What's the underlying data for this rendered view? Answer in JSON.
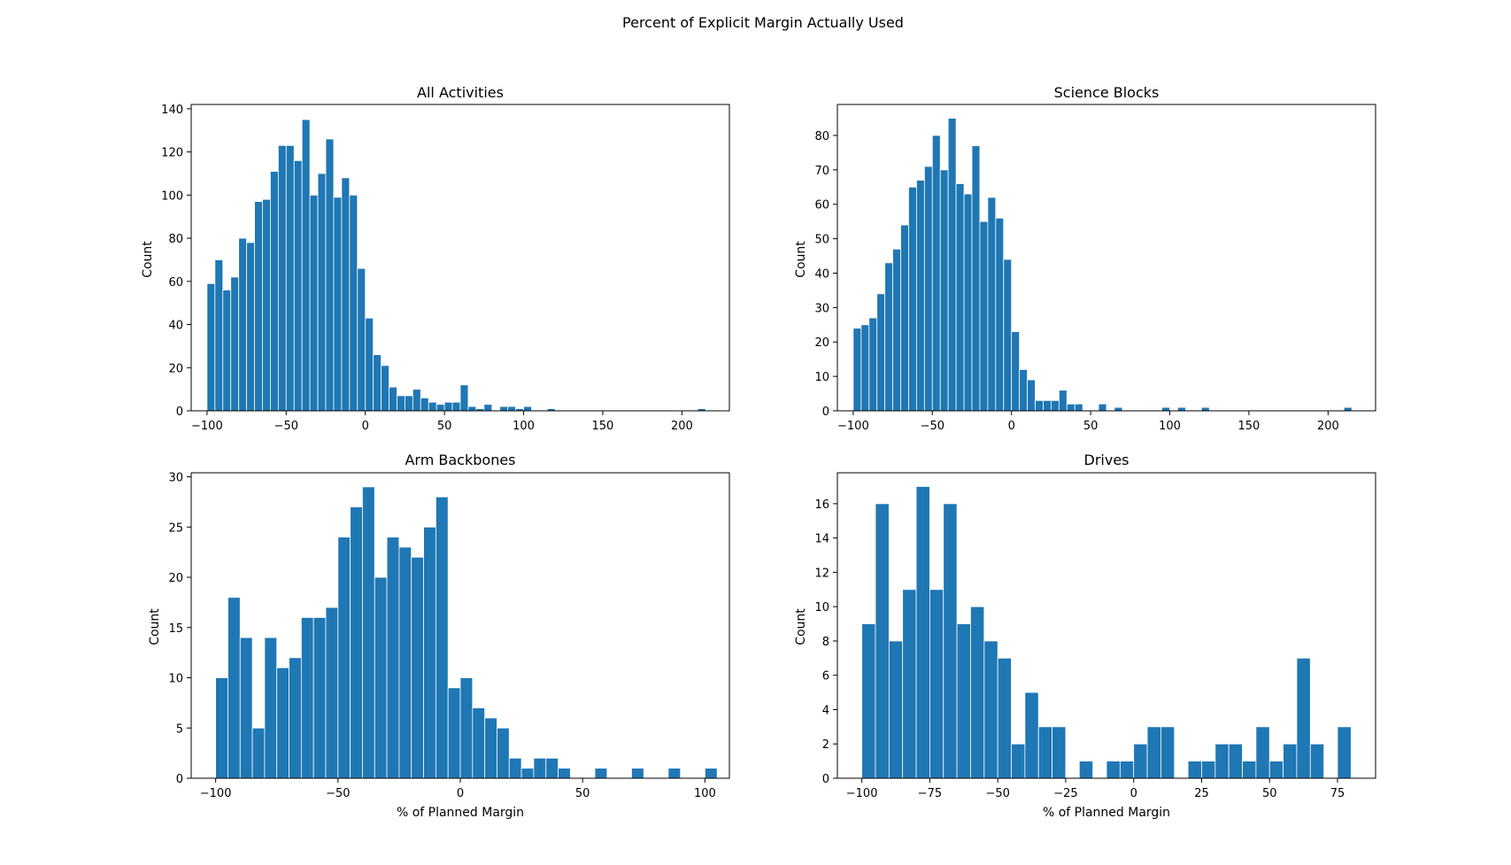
{
  "figure": {
    "suptitle": "Percent of Explicit Margin Actually Used",
    "bar_color": "#1f77b4"
  },
  "chart_data": [
    {
      "type": "bar",
      "title": "All Activities",
      "xlabel": "",
      "ylabel": "Count",
      "xlim": [
        -110,
        230
      ],
      "ylim": [
        0,
        142
      ],
      "xticks": [
        -100,
        -50,
        0,
        50,
        100,
        150,
        200
      ],
      "xtick_labels": [
        "−100",
        "−50",
        "0",
        "50",
        "100",
        "150",
        "200"
      ],
      "yticks": [
        0,
        20,
        40,
        60,
        80,
        100,
        120,
        140
      ],
      "bin_edges": [
        -100,
        -95,
        -90,
        -85,
        -80,
        -75,
        -70,
        -65,
        -60,
        -55,
        -50,
        -45,
        -40,
        -35,
        -30,
        -25,
        -20,
        -15,
        -10,
        -5,
        0,
        5,
        10,
        15,
        20,
        25,
        30,
        35,
        40,
        45,
        50,
        55,
        60,
        65,
        70,
        75,
        80,
        85,
        90,
        95,
        100,
        105,
        110,
        115,
        120,
        125,
        130,
        135,
        140,
        145,
        150,
        155,
        160,
        165,
        170,
        175,
        180,
        185,
        190,
        195,
        200,
        205,
        210,
        215
      ],
      "values": [
        59,
        70,
        56,
        62,
        80,
        78,
        97,
        98,
        111,
        123,
        123,
        116,
        135,
        100,
        110,
        126,
        99,
        108,
        100,
        66,
        43,
        26,
        21,
        11,
        7,
        7,
        10,
        6,
        4,
        3,
        4,
        4,
        12,
        2,
        1,
        3,
        0,
        2,
        2,
        1,
        2,
        0,
        0,
        1,
        0,
        0,
        0,
        0,
        0,
        0,
        0,
        0,
        0,
        0,
        0,
        0,
        0,
        0,
        0,
        0,
        0,
        0,
        1
      ]
    },
    {
      "type": "bar",
      "title": "Science Blocks",
      "xlabel": "",
      "ylabel": "Count",
      "xlim": [
        -110,
        230
      ],
      "ylim": [
        0,
        89
      ],
      "xticks": [
        -100,
        -50,
        0,
        50,
        100,
        150,
        200
      ],
      "xtick_labels": [
        "−100",
        "−50",
        "0",
        "50",
        "100",
        "150",
        "200"
      ],
      "yticks": [
        0,
        10,
        20,
        30,
        40,
        50,
        60,
        70,
        80
      ],
      "bin_edges": [
        -100,
        -95,
        -90,
        -85,
        -80,
        -75,
        -70,
        -65,
        -60,
        -55,
        -50,
        -45,
        -40,
        -35,
        -30,
        -25,
        -20,
        -15,
        -10,
        -5,
        0,
        5,
        10,
        15,
        20,
        25,
        30,
        35,
        40,
        45,
        50,
        55,
        60,
        65,
        70,
        75,
        80,
        85,
        90,
        95,
        100,
        105,
        110,
        115,
        120,
        125,
        130,
        135,
        140,
        145,
        150,
        155,
        160,
        165,
        170,
        175,
        180,
        185,
        190,
        195,
        200,
        205,
        210,
        215
      ],
      "values": [
        24,
        25,
        27,
        34,
        43,
        47,
        54,
        65,
        67,
        71,
        80,
        70,
        85,
        66,
        63,
        77,
        55,
        62,
        56,
        44,
        23,
        12,
        9,
        3,
        3,
        3,
        6,
        2,
        2,
        0,
        0,
        2,
        0,
        1,
        0,
        0,
        0,
        0,
        0,
        1,
        0,
        1,
        0,
        0,
        1,
        0,
        0,
        0,
        0,
        0,
        0,
        0,
        0,
        0,
        0,
        0,
        0,
        0,
        0,
        0,
        0,
        0,
        1
      ]
    },
    {
      "type": "bar",
      "title": "Arm Backbones",
      "xlabel": "% of Planned Margin",
      "ylabel": "Count",
      "xlim": [
        -110,
        110
      ],
      "ylim": [
        0,
        30.4
      ],
      "xticks": [
        -100,
        -50,
        0,
        50,
        100
      ],
      "xtick_labels": [
        "−100",
        "−50",
        "0",
        "50",
        "100"
      ],
      "yticks": [
        0,
        5,
        10,
        15,
        20,
        25,
        30
      ],
      "bin_edges": [
        -100,
        -95,
        -90,
        -85,
        -80,
        -75,
        -70,
        -65,
        -60,
        -55,
        -50,
        -45,
        -40,
        -35,
        -30,
        -25,
        -20,
        -15,
        -10,
        -5,
        0,
        5,
        10,
        15,
        20,
        25,
        30,
        35,
        40,
        45,
        50,
        55,
        60,
        65,
        70,
        75,
        80,
        85,
        90,
        95,
        100,
        105
      ],
      "values": [
        10,
        18,
        14,
        5,
        14,
        11,
        12,
        16,
        16,
        17,
        24,
        27,
        29,
        20,
        24,
        23,
        22,
        25,
        28,
        9,
        10,
        7,
        6,
        5,
        2,
        1,
        2,
        2,
        1,
        0,
        0,
        1,
        0,
        0,
        1,
        0,
        0,
        1,
        0,
        0,
        1
      ]
    },
    {
      "type": "bar",
      "title": "Drives",
      "xlabel": "% of Planned Margin",
      "ylabel": "Count",
      "xlim": [
        -109,
        89
      ],
      "ylim": [
        0,
        17.8
      ],
      "xticks": [
        -100,
        -75,
        -50,
        -25,
        0,
        25,
        50,
        75
      ],
      "xtick_labels": [
        "−100",
        "−75",
        "−50",
        "−25",
        "0",
        "25",
        "50",
        "75"
      ],
      "yticks": [
        0,
        2,
        4,
        6,
        8,
        10,
        12,
        14,
        16
      ],
      "bin_edges": [
        -100,
        -95,
        -90,
        -85,
        -80,
        -75,
        -70,
        -65,
        -60,
        -55,
        -50,
        -45,
        -40,
        -35,
        -30,
        -25,
        -20,
        -15,
        -10,
        -5,
        0,
        5,
        10,
        15,
        20,
        25,
        30,
        35,
        40,
        45,
        50,
        55,
        60,
        65,
        70,
        75,
        80
      ],
      "values": [
        9,
        16,
        8,
        11,
        17,
        11,
        16,
        9,
        10,
        8,
        7,
        2,
        5,
        3,
        3,
        0,
        1,
        0,
        1,
        1,
        2,
        3,
        3,
        0,
        1,
        1,
        2,
        2,
        1,
        3,
        1,
        2,
        7,
        2,
        0,
        3
      ]
    }
  ]
}
